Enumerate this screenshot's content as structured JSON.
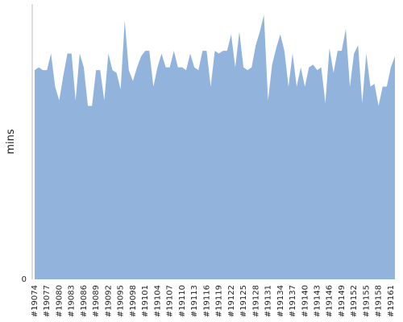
{
  "chart_data": {
    "type": "area",
    "y_label": "mins",
    "color": "#92b4dc",
    "categories": [
      "#19074",
      null,
      null,
      "#19077",
      null,
      null,
      "#19080",
      null,
      null,
      "#19083",
      null,
      null,
      "#19086",
      null,
      null,
      "#19089",
      null,
      null,
      "#19092",
      null,
      null,
      "#19095",
      null,
      null,
      "#19098",
      null,
      null,
      "#19101",
      null,
      null,
      "#19104",
      null,
      null,
      "#19107",
      null,
      null,
      "#19110",
      null,
      null,
      "#19113",
      null,
      null,
      "#19116",
      null,
      null,
      "#19119",
      null,
      null,
      "#19122",
      null,
      null,
      "#19125",
      null,
      null,
      "#19128",
      null,
      null,
      "#19131",
      null,
      null,
      "#19134",
      null,
      null,
      "#19137",
      null,
      null,
      "#19140",
      null,
      null,
      "#19143",
      null,
      null,
      "#19146",
      null,
      null,
      "#19149",
      null,
      null,
      "#19152",
      null,
      null,
      "#19155",
      null,
      null,
      "#19158",
      null,
      null,
      "#19161",
      null
    ],
    "values": [
      76,
      77,
      76,
      76,
      82,
      70,
      65,
      74,
      82,
      82,
      65,
      82,
      77,
      63,
      63,
      76,
      76,
      65,
      82,
      76,
      75,
      69,
      94,
      76,
      72,
      77,
      81,
      83,
      83,
      70,
      77,
      82,
      77,
      77,
      83,
      77,
      77,
      76,
      82,
      77,
      76,
      83,
      83,
      70,
      83,
      82,
      83,
      83,
      89,
      77,
      90,
      77,
      76,
      77,
      85,
      90,
      96,
      65,
      78,
      84,
      89,
      83,
      70,
      82,
      70,
      77,
      70,
      77,
      78,
      76,
      77,
      64,
      84,
      75,
      83,
      83,
      91,
      70,
      82,
      85,
      64,
      82,
      70,
      71,
      63,
      70,
      70,
      77,
      81
    ],
    "ylim": [
      0,
      100
    ],
    "yticks": [
      0
    ]
  }
}
